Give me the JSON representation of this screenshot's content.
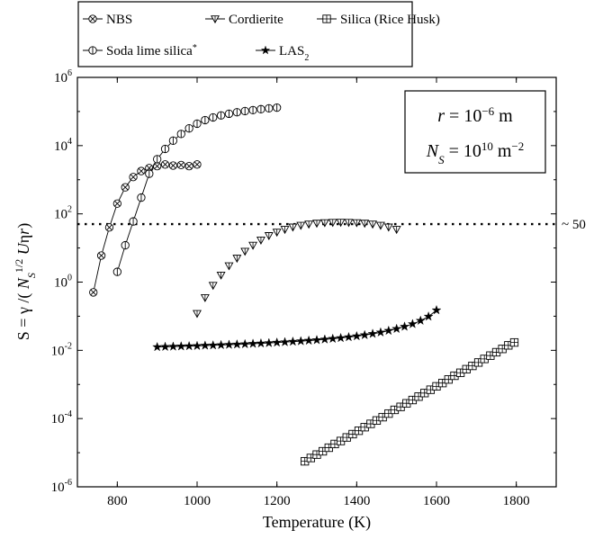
{
  "chart_data": {
    "type": "scatter",
    "xlabel": "Temperature (K)",
    "ylabel": {
      "parts": [
        {
          "t": "S = γ /( "
        },
        {
          "t": "N",
          "style": "italic"
        },
        {
          "t": "S",
          "style": "italic",
          "shift": "sub"
        },
        {
          "t": "1/2",
          "shift": "sup"
        },
        {
          "t": " U",
          "style": "italic"
        },
        {
          "t": "η"
        },
        {
          "t": "r",
          "style": "italic"
        },
        {
          "t": ")"
        }
      ]
    },
    "xlim": [
      700,
      1900
    ],
    "ylim_log10": [
      -6,
      6
    ],
    "x_scale": "linear",
    "y_scale": "log",
    "xticks": [
      800,
      1000,
      1200,
      1400,
      1600,
      1800
    ],
    "yticks": [
      -6,
      -4,
      -2,
      0,
      2,
      4,
      6
    ],
    "grid": false,
    "legend_position": "top, above plot",
    "reference_line": {
      "y": 50,
      "style": "dotted",
      "label": "~ 50"
    },
    "annotation_box": {
      "line1": {
        "parts": [
          {
            "t": "r",
            "style": "italic"
          },
          {
            "t": " = 10"
          },
          {
            "t": "−6",
            "shift": "sup"
          },
          {
            "t": " m"
          }
        ]
      },
      "line2": {
        "parts": [
          {
            "t": "N",
            "style": "italic"
          },
          {
            "t": "S",
            "style": "italic",
            "shift": "sub"
          },
          {
            "t": " = 10"
          },
          {
            "t": "10",
            "shift": "sup"
          },
          {
            "t": " m"
          },
          {
            "t": "−2",
            "shift": "sup"
          }
        ]
      }
    },
    "series": [
      {
        "name": "NBS",
        "marker": "circle-x",
        "line": true,
        "x_start": 740,
        "x_end": 1000,
        "x_step": 20,
        "y": [
          0.5,
          6,
          40,
          200,
          600,
          1200,
          1800,
          2200,
          2500,
          2800,
          2600,
          2700,
          2500,
          2800
        ]
      },
      {
        "name": "Cordierite",
        "marker": "triangle-down",
        "line": false,
        "x_start": 1000,
        "x_end": 1500,
        "x_step": 20,
        "y": [
          0.12,
          0.35,
          0.8,
          1.6,
          3,
          5,
          8,
          12,
          17,
          23,
          29,
          35,
          41,
          46,
          50,
          53,
          55,
          56,
          56.5,
          56,
          55,
          53,
          50,
          46,
          41,
          35
        ]
      },
      {
        "name": "Silica (Rice Husk)",
        "marker": "square-plus",
        "line": false,
        "x_start": 1270,
        "x_end": 1800,
        "x_step": 15,
        "y": [
          5.6e-06,
          7e-06,
          8.8e-06,
          1.1e-05,
          1.4e-05,
          1.8e-05,
          2.2e-05,
          2.8e-05,
          3.5e-05,
          4.4e-05,
          5.6e-05,
          7e-05,
          8.8e-05,
          0.00011,
          0.00014,
          0.00018,
          0.00022,
          0.00028,
          0.00035,
          0.00044,
          0.00056,
          0.0007,
          0.00088,
          0.0011,
          0.0014,
          0.0018,
          0.0022,
          0.0028,
          0.0035,
          0.0044,
          0.0056,
          0.007,
          0.0088,
          0.011,
          0.014,
          0.017
        ]
      },
      {
        "name": "Soda lime silica",
        "name_suffix_sup": "*",
        "marker": "circle-bar",
        "line": true,
        "x_start": 800,
        "x_end": 1200,
        "x_step": 20,
        "y": [
          2,
          12,
          60,
          300,
          1500,
          4000,
          8000,
          14000,
          22000,
          32000,
          44000,
          56000,
          67000,
          77000,
          86000,
          95000,
          103000,
          110000,
          117000,
          124000,
          130000
        ]
      },
      {
        "name": "LAS",
        "name_sub": "2",
        "marker": "star",
        "line": true,
        "x_start": 900,
        "x_end": 1600,
        "x_step": 20,
        "y": [
          0.0125,
          0.0127,
          0.0129,
          0.0131,
          0.0133,
          0.0135,
          0.0138,
          0.014,
          0.0143,
          0.0146,
          0.0149,
          0.0152,
          0.0156,
          0.016,
          0.0164,
          0.0169,
          0.0174,
          0.018,
          0.0186,
          0.0193,
          0.02,
          0.0209,
          0.0219,
          0.023,
          0.0244,
          0.026,
          0.028,
          0.0305,
          0.0336,
          0.0376,
          0.0427,
          0.0495,
          0.059,
          0.074,
          0.098,
          0.15
        ]
      }
    ],
    "legend_rows": [
      [
        "NBS",
        "Cordierite",
        "Silica (Rice Husk)"
      ],
      [
        "Soda lime silica",
        "LAS"
      ]
    ]
  }
}
